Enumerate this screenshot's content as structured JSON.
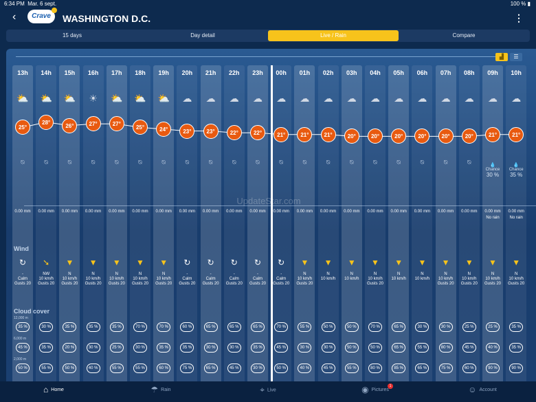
{
  "status": {
    "time": "6:34 PM",
    "date": "Mar. 6 sept.",
    "battery": "100 %"
  },
  "header": {
    "back_icon": "back-arrow-icon",
    "logo": "Crave",
    "city": "WASHINGTON D.C.",
    "menu_icon": "more-icon"
  },
  "tabs": [
    "15 days",
    "Day detail",
    "Live / Rain",
    "Compare"
  ],
  "active_tab": 2,
  "labels": {
    "wind": "Wind",
    "cloud": "Cloud cover",
    "alt_high": "12,000 m",
    "alt_mid": "6,000 m",
    "alt_low": "2,000 m"
  },
  "hours": [
    {
      "h": "13h",
      "t": "25°",
      "icon": "sun-cloud-icon",
      "rain": "0.00 mm",
      "wind_icon": "calm",
      "wdir": "-",
      "wspd": "Calm",
      "gust": "Gusts 20",
      "c1": "35 %",
      "c2": "45 %",
      "c3": "50 %"
    },
    {
      "h": "14h",
      "t": "28°",
      "icon": "sun-cloud-icon",
      "rain": "0.00 mm",
      "wind_icon": "arrow",
      "wdir": "NW",
      "wspd": "10 km/h",
      "gust": "Gusts 20",
      "c1": "30 %",
      "c2": "35 %",
      "c3": "55 %"
    },
    {
      "h": "15h",
      "t": "26°",
      "icon": "sun-cloud-icon",
      "rain": "0.00 mm",
      "wind_icon": "arrow",
      "wdir": "N",
      "wspd": "10 km/h",
      "gust": "Gusts 20",
      "c1": "35 %",
      "c2": "20 %",
      "c3": "50 %"
    },
    {
      "h": "16h",
      "t": "27°",
      "icon": "sun-icon",
      "rain": "0.00 mm",
      "wind_icon": "arrow",
      "wdir": "N",
      "wspd": "10 km/h",
      "gust": "Gusts 20",
      "c1": "35 %",
      "c2": "30 %",
      "c3": "40 %"
    },
    {
      "h": "17h",
      "t": "27°",
      "icon": "sun-cloud-icon",
      "rain": "0.00 mm",
      "wind_icon": "arrow",
      "wdir": "N",
      "wspd": "10 km/h",
      "gust": "Gusts 20",
      "c1": "35 %",
      "c2": "25 %",
      "c3": "55 %"
    },
    {
      "h": "18h",
      "t": "25°",
      "icon": "sun-cloud-icon",
      "rain": "0.00 mm",
      "wind_icon": "arrow",
      "wdir": "N",
      "wspd": "10 km/h",
      "gust": "Gusts 20",
      "c1": "70 %",
      "c2": "30 %",
      "c3": "55 %"
    },
    {
      "h": "19h",
      "t": "24°",
      "icon": "sun-cloud-icon",
      "rain": "0.00 mm",
      "wind_icon": "arrow",
      "wdir": "N",
      "wspd": "10 km/h",
      "gust": "Gusts 20",
      "c1": "70 %",
      "c2": "35 %",
      "c3": "60 %"
    },
    {
      "h": "20h",
      "t": "23°",
      "icon": "cloud-icon",
      "rain": "0.00 mm",
      "wind_icon": "calm",
      "wdir": "-",
      "wspd": "Calm",
      "gust": "Gusts 20",
      "c1": "60 %",
      "c2": "35 %",
      "c3": "75 %"
    },
    {
      "h": "21h",
      "t": "23°",
      "icon": "moon-cloud-icon",
      "rain": "0.00 mm",
      "wind_icon": "calm",
      "wdir": "-",
      "wspd": "Calm",
      "gust": "Gusts 20",
      "c1": "65 %",
      "c2": "30 %",
      "c3": "65 %"
    },
    {
      "h": "22h",
      "t": "22°",
      "icon": "moon-cloud-icon",
      "rain": "0.00 mm",
      "wind_icon": "calm",
      "wdir": "-",
      "wspd": "Calm",
      "gust": "Gusts 20",
      "c1": "65 %",
      "c2": "30 %",
      "c3": "45 %"
    },
    {
      "h": "23h",
      "t": "22°",
      "icon": "moon-cloud-icon",
      "rain": "0.00 mm",
      "wind_icon": "calm",
      "wdir": "-",
      "wspd": "Calm",
      "gust": "Gusts 20",
      "c1": "65 %",
      "c2": "35 %",
      "c3": "30 %"
    },
    {
      "h": "00h",
      "t": "21°",
      "icon": "moon-cloud-icon",
      "rain": "0.00 mm",
      "wind_icon": "calm",
      "wdir": "-",
      "wspd": "Calm",
      "gust": "Gusts 20",
      "c1": "70 %",
      "c2": "45 %",
      "c3": "50 %"
    },
    {
      "h": "01h",
      "t": "21°",
      "icon": "moon-cloud-icon",
      "rain": "0.00 mm",
      "wind_icon": "arrow",
      "wdir": "N",
      "wspd": "10 km/h",
      "gust": "Gusts 20",
      "c1": "55 %",
      "c2": "30 %",
      "c3": "40 %"
    },
    {
      "h": "02h",
      "t": "21°",
      "icon": "moon-cloud-icon",
      "rain": "0.00 mm",
      "wind_icon": "arrow",
      "wdir": "N",
      "wspd": "10 km/h",
      "gust": "",
      "c1": "50 %",
      "c2": "30 %",
      "c3": "45 %"
    },
    {
      "h": "03h",
      "t": "20°",
      "icon": "moon-cloud-icon",
      "rain": "0.00 mm",
      "wind_icon": "arrow",
      "wdir": "N",
      "wspd": "10 km/h",
      "gust": "",
      "c1": "50 %",
      "c2": "50 %",
      "c3": "55 %"
    },
    {
      "h": "04h",
      "t": "20°",
      "icon": "cloud-icon",
      "rain": "0.00 mm",
      "wind_icon": "arrow",
      "wdir": "N",
      "wspd": "10 km/h",
      "gust": "Gusts 20",
      "c1": "70 %",
      "c2": "50 %",
      "c3": "80 %"
    },
    {
      "h": "05h",
      "t": "20°",
      "icon": "cloud-icon",
      "rain": "0.00 mm",
      "wind_icon": "arrow",
      "wdir": "N",
      "wspd": "10 km/h",
      "gust": "",
      "c1": "65 %",
      "c2": "65 %",
      "c3": "85 %"
    },
    {
      "h": "06h",
      "t": "20°",
      "icon": "cloud-icon",
      "rain": "0.00 mm",
      "wind_icon": "arrow",
      "wdir": "N",
      "wspd": "10 km/h",
      "gust": "",
      "c1": "30 %",
      "c2": "55 %",
      "c3": "65 %"
    },
    {
      "h": "07h",
      "t": "20°",
      "icon": "cloud-icon",
      "rain": "0.00 mm",
      "wind_icon": "arrow",
      "wdir": "N",
      "wspd": "10 km/h",
      "gust": "Gusts 20",
      "c1": "30 %",
      "c2": "80 %",
      "c3": "75 %"
    },
    {
      "h": "08h",
      "t": "20°",
      "icon": "cloud-icon",
      "rain": "0.00 mm",
      "wind_icon": "arrow",
      "wdir": "N",
      "wspd": "10 km/h",
      "gust": "Gusts 20",
      "c1": "25 %",
      "c2": "45 %",
      "c3": "60 %"
    },
    {
      "h": "09h",
      "t": "21°",
      "icon": "cloud-icon",
      "rain": "0.00 mm",
      "norain": "No rain",
      "chance": "30 %",
      "wind_icon": "arrow",
      "wdir": "N",
      "wspd": "10 km/h",
      "gust": "Gusts 20",
      "c1": "25 %",
      "c2": "40 %",
      "c3": "90 %"
    },
    {
      "h": "10h",
      "t": "21°",
      "icon": "cloud-icon",
      "rain": "0.00 mm",
      "norain": "No rain",
      "chance": "35 %",
      "wind_icon": "arrow",
      "wdir": "N",
      "wspd": "10 km/h",
      "gust": "Gusts 20",
      "c1": "35 %",
      "c2": "35 %",
      "c3": "90 %"
    }
  ],
  "chance_label": "Chance",
  "watermark": "UpdateStar.com",
  "nav": [
    {
      "label": "Home",
      "icon": "home-icon"
    },
    {
      "label": "Rain",
      "icon": "rain-icon"
    },
    {
      "label": "Live",
      "icon": "map-pin-icon"
    },
    {
      "label": "Pictures",
      "icon": "camera-icon",
      "badge": "1"
    },
    {
      "label": "Account",
      "icon": "user-icon"
    }
  ],
  "colors": {
    "accent": "#f7c31b",
    "temp": "#e85a10",
    "bg": "#0d2a4e"
  }
}
